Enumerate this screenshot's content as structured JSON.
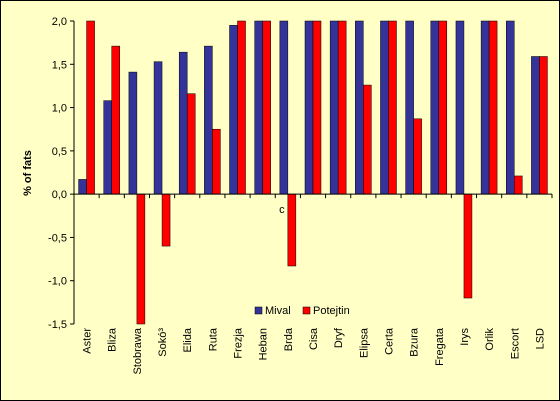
{
  "chart_data": {
    "type": "bar",
    "title": "",
    "xlabel": "",
    "ylabel": "% of fats",
    "ylim": [
      -1.5,
      2.0
    ],
    "yticks": [
      "2,0",
      "1,5",
      "1,0",
      "0,5",
      "0,0",
      "-0,5",
      "-1,0",
      "-1,5"
    ],
    "categories": [
      "Aster",
      "Bliza",
      "Stobrawa",
      "Sokó³",
      "Elida",
      "Ruta",
      "Frezja",
      "Heban",
      "Brda",
      "Cisa",
      "Dryf",
      "Elipsa",
      "Certa",
      "Bzura",
      "Fregata",
      "Irys",
      "Orlik",
      "Escort",
      "LSD"
    ],
    "series": [
      {
        "name": "Mival",
        "color": "#333399",
        "values": [
          0.17,
          1.08,
          1.41,
          1.53,
          1.64,
          1.71,
          1.95,
          2.0,
          2.0,
          2.0,
          2.0,
          2.0,
          2.0,
          2.0,
          2.0,
          2.0,
          2.0,
          2.0,
          1.59
        ]
      },
      {
        "name": "Potejtin",
        "color": "#ff0000",
        "values": [
          2.0,
          1.71,
          -1.5,
          -0.6,
          1.16,
          0.75,
          2.0,
          2.0,
          -0.83,
          2.0,
          2.0,
          1.26,
          2.0,
          0.87,
          2.0,
          -1.2,
          2.0,
          0.21,
          1.59
        ]
      }
    ],
    "annotations": [
      {
        "text": "c",
        "category": "Brda"
      }
    ],
    "legend": "bottom-right inside plot",
    "grid": false
  }
}
